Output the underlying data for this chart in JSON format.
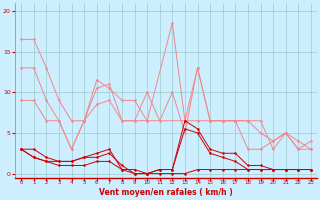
{
  "bg_color": "#cceeff",
  "grid_color": "#99cccc",
  "xlabel": "Vent moyen/en rafales ( km/h )",
  "xlim": [
    -0.5,
    23.5
  ],
  "ylim": [
    -0.5,
    21
  ],
  "yticks": [
    0,
    5,
    10,
    15,
    20
  ],
  "xticks": [
    0,
    1,
    2,
    3,
    4,
    5,
    6,
    7,
    8,
    9,
    10,
    11,
    12,
    13,
    14,
    15,
    16,
    17,
    18,
    19,
    20,
    21,
    22,
    23
  ],
  "light_color": "#f08888",
  "dark_color": "#cc0000",
  "series_light_x": [
    [
      0,
      1,
      2,
      3,
      4,
      5,
      6,
      7,
      8,
      9,
      10,
      11,
      12,
      13,
      14,
      15,
      16,
      17,
      18,
      19,
      20,
      21,
      22,
      23
    ],
    [
      0,
      1,
      2,
      3,
      4,
      5,
      6,
      7,
      8,
      9,
      10,
      12,
      13,
      14,
      15,
      16,
      17,
      18,
      19,
      20,
      21,
      22,
      23
    ],
    [
      0,
      1,
      2,
      3,
      4,
      5,
      6,
      7,
      8,
      9,
      10,
      13,
      14,
      15,
      16,
      17,
      18,
      19,
      20,
      21,
      22,
      23
    ]
  ],
  "series_light_y": [
    [
      16.5,
      16.5,
      13.0,
      9.0,
      6.5,
      6.5,
      10.5,
      11.0,
      6.5,
      6.5,
      10.0,
      6.5,
      10.0,
      5.0,
      13.0,
      6.5,
      6.5,
      6.5,
      6.5,
      6.5,
      3.0,
      5.0,
      3.0,
      3.0
    ],
    [
      13.0,
      13.0,
      9.0,
      6.5,
      3.0,
      6.5,
      11.5,
      10.5,
      9.0,
      9.0,
      6.5,
      18.5,
      6.5,
      13.0,
      6.5,
      6.5,
      6.5,
      6.5,
      5.0,
      4.0,
      5.0,
      3.0,
      4.0
    ],
    [
      9.0,
      9.0,
      6.5,
      6.5,
      3.0,
      6.5,
      8.5,
      9.0,
      6.5,
      6.5,
      6.5,
      6.5,
      6.5,
      6.5,
      6.5,
      6.5,
      3.0,
      3.0,
      4.0,
      5.0,
      4.0,
      3.0
    ]
  ],
  "series_dark_x": [
    [
      0,
      1,
      2,
      3,
      4,
      5,
      6,
      7,
      8,
      9,
      10,
      11,
      12,
      13,
      14,
      15,
      16,
      17,
      18,
      19,
      20,
      21,
      22,
      23
    ],
    [
      0,
      1,
      2,
      3,
      4,
      5,
      6,
      7,
      8,
      9,
      10,
      11,
      12,
      13,
      14,
      15,
      16,
      17,
      18,
      19,
      20,
      21,
      22,
      23
    ],
    [
      0,
      1,
      2,
      3,
      4,
      5,
      6,
      7,
      8,
      9,
      10,
      11,
      12,
      13,
      14,
      15,
      16,
      17,
      18,
      19,
      20,
      21,
      22,
      23
    ]
  ],
  "series_dark_y": [
    [
      3.0,
      3.0,
      2.0,
      1.5,
      1.5,
      2.0,
      2.5,
      3.0,
      0.5,
      0.5,
      0.0,
      0.5,
      0.5,
      6.5,
      5.5,
      3.0,
      2.5,
      2.5,
      1.0,
      1.0,
      0.5,
      0.5,
      0.5,
      0.5
    ],
    [
      3.0,
      2.0,
      1.5,
      1.5,
      1.5,
      2.0,
      2.0,
      2.5,
      1.0,
      0.0,
      0.0,
      0.5,
      0.5,
      5.5,
      5.0,
      2.5,
      2.0,
      1.5,
      0.5,
      0.5,
      0.5,
      0.5,
      0.5,
      0.5
    ],
    [
      3.0,
      2.0,
      1.5,
      1.0,
      1.0,
      1.0,
      1.5,
      1.5,
      0.5,
      0.0,
      0.0,
      0.0,
      0.0,
      0.0,
      0.5,
      0.5,
      0.5,
      0.5,
      0.5,
      0.5,
      0.5,
      0.5,
      0.5,
      0.5
    ]
  ]
}
